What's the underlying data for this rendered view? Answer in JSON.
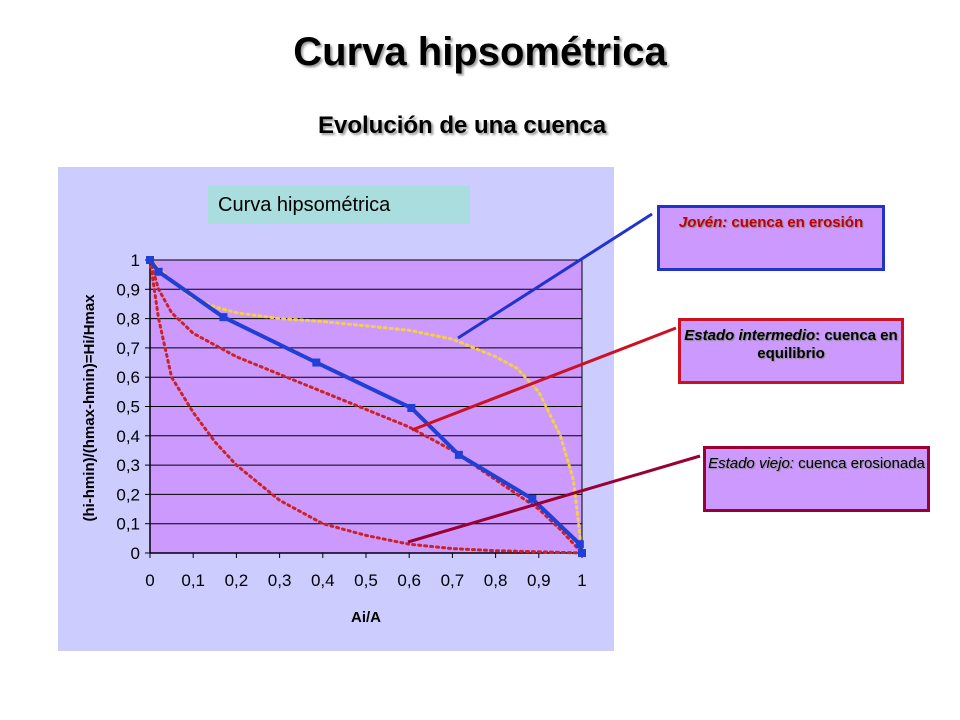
{
  "page": {
    "title": "Curva hipsométrica",
    "subtitle": "Evolución de una cuenca"
  },
  "callouts": {
    "young": {
      "italic": "Jovén:",
      "rest": " cuenca en erosión"
    },
    "intermediate": {
      "italic": "Estado intermedio",
      "rest": ": cuenca en equilibrio"
    },
    "old": {
      "italic": "Estado viejo:",
      "rest": " cuenca erosionada"
    }
  },
  "colors": {
    "panel": "#ccccff",
    "plot_area": "#cc99ff",
    "main_series": "#1f3fd6",
    "young_curve": "#f5d040",
    "intermediate_curve": "#cc2222",
    "old_curve": "#cc2222"
  },
  "chart_data": {
    "type": "line",
    "title": "Curva hipsométrica",
    "xlabel": "Ai/A",
    "ylabel": "(hi-hmin)/(hmax-hmin)=Hi/Hmax",
    "xlim": [
      0,
      1
    ],
    "ylim": [
      0,
      1
    ],
    "x_ticks": [
      "0",
      "0,1",
      "0,2",
      "0,3",
      "0,4",
      "0,5",
      "0,6",
      "0,7",
      "0,8",
      "0,9",
      "1"
    ],
    "y_ticks": [
      "0",
      "0,1",
      "0,2",
      "0,3",
      "0,4",
      "0,5",
      "0,6",
      "0,7",
      "0,8",
      "0,9",
      "1"
    ],
    "grid": "horizontal",
    "series": [
      {
        "style": "solid-markers",
        "x": [
          0,
          0.02,
          0.17,
          0.385,
          0.605,
          0.715,
          0.885,
          0.995,
          1.0
        ],
        "y": [
          1,
          0.96,
          0.805,
          0.65,
          0.495,
          0.335,
          0.185,
          0.03,
          0.0
        ]
      },
      {
        "style": "dotted",
        "x": [
          0,
          0.05,
          0.1,
          0.15,
          0.2,
          0.3,
          0.4,
          0.5,
          0.6,
          0.7,
          0.8,
          0.85,
          0.9,
          0.95,
          0.98,
          1.0
        ],
        "y": [
          1,
          0.93,
          0.87,
          0.84,
          0.82,
          0.8,
          0.79,
          0.775,
          0.76,
          0.73,
          0.67,
          0.63,
          0.55,
          0.4,
          0.25,
          0.0
        ]
      },
      {
        "style": "dotted",
        "x": [
          0,
          0.02,
          0.05,
          0.1,
          0.2,
          0.3,
          0.4,
          0.5,
          0.6,
          0.7,
          0.8,
          0.9,
          0.95,
          1.0
        ],
        "y": [
          1,
          0.9,
          0.82,
          0.75,
          0.67,
          0.61,
          0.55,
          0.49,
          0.43,
          0.35,
          0.25,
          0.15,
          0.08,
          0.0
        ]
      },
      {
        "style": "dotted",
        "x": [
          0,
          0.02,
          0.05,
          0.1,
          0.15,
          0.2,
          0.3,
          0.4,
          0.5,
          0.6,
          0.7,
          0.8,
          0.9,
          1.0
        ],
        "y": [
          1,
          0.8,
          0.6,
          0.48,
          0.38,
          0.3,
          0.18,
          0.1,
          0.06,
          0.03,
          0.015,
          0.008,
          0.004,
          0.0
        ]
      }
    ]
  }
}
